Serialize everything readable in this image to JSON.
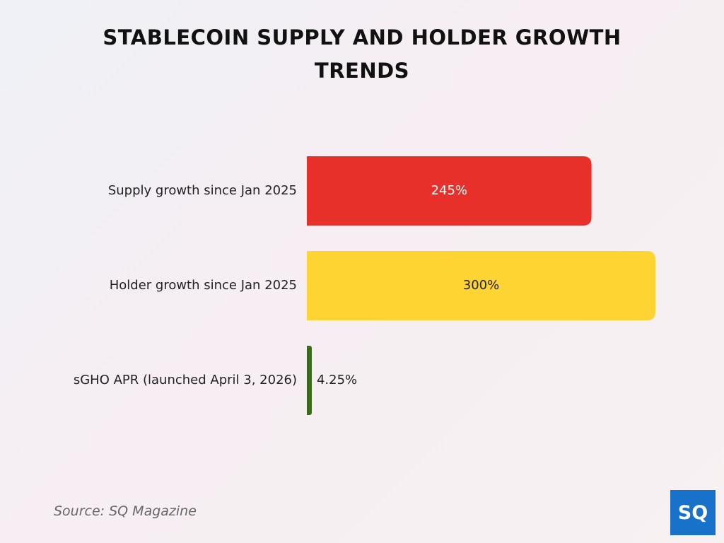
{
  "chart_data": {
    "type": "bar",
    "orientation": "horizontal",
    "title": "STABLECOIN SUPPLY AND HOLDER GROWTH TRENDS",
    "categories": [
      "Supply growth since Jan 2025",
      "Holder growth since Jan 2025",
      "sGHO APR (launched April 3, 2026)"
    ],
    "values": [
      245,
      300,
      4.25
    ],
    "value_labels": [
      "245%",
      "300%",
      "4.25%"
    ],
    "colors": [
      "#e8302a",
      "#fed432",
      "#3b6a1c"
    ],
    "source": "Source: SQ Magazine",
    "logo": "SQ"
  }
}
